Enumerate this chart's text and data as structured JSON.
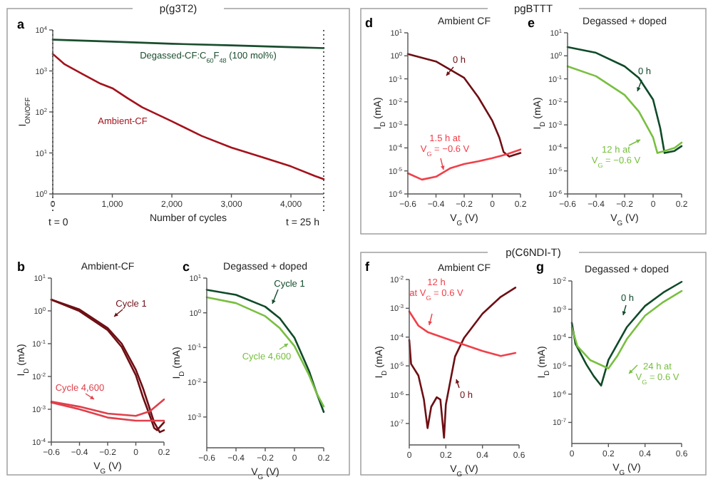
{
  "chart_data": [
    {
      "type": "line",
      "subtitle": "p(g3T2)",
      "annotations": [
        "a",
        "t = 0",
        "t = 25 h"
      ],
      "ylabel": "I$_{ON/OFF}$",
      "xlabel": "Number of cycles",
      "log": true,
      "xlim": [
        0,
        4550
      ],
      "xticks": [
        0,
        {
          "value": 1000,
          "label": "1,000"
        },
        {
          "value": 2000,
          "label": "2,000"
        },
        {
          "value": 3000,
          "label": "3,000"
        },
        {
          "value": 4000,
          "label": "4,000"
        }
      ],
      "ylim": [
        1,
        10000
      ],
      "yticks": [
        {
          "value": 1,
          "label": "10$^{0}$"
        },
        {
          "value": 10,
          "label": "10$^{1}$"
        },
        {
          "value": 100,
          "label": "10$^{2}$"
        },
        {
          "value": 1000,
          "label": "10$^{3}$"
        },
        {
          "value": 10000,
          "label": "10$^{4}$"
        }
      ],
      "ref_lines": [
        {
          "axis": "x",
          "value": 0,
          "line_style": "dotted"
        },
        {
          "axis": "x",
          "value": 4550,
          "line_style": "dotted"
        }
      ],
      "series": [
        {
          "name": "Degassed-CF:C$_{60}$F$_{48}$ (100 mol%)",
          "color": "#1a4d2e",
          "x": [
            0,
            1000,
            2000,
            3000,
            4000,
            4550
          ],
          "values": [
            5800,
            5200,
            4600,
            4200,
            3800,
            3600
          ]
        },
        {
          "name": "Ambient-CF",
          "color": "#a3121c",
          "x": [
            0,
            200,
            500,
            800,
            1000,
            1250,
            1500,
            2000,
            2500,
            3000,
            3500,
            4000,
            4400,
            4550
          ],
          "values": [
            2600,
            1450,
            840,
            490,
            380,
            220,
            130,
            59,
            26,
            13.5,
            8,
            4.7,
            2.75,
            2.3
          ]
        }
      ]
    },
    {
      "type": "line",
      "title": "Ambient-CF",
      "annotations": [
        "b"
      ],
      "xlabel": "V$_{G}$ (V)",
      "ylabel": "I$_{D}$ (mA)",
      "log": true,
      "xlim": [
        -0.6,
        0.2
      ],
      "xticks": [
        -0.6,
        -0.4,
        -0.2,
        0,
        0.2
      ],
      "ylim": [
        0.0001,
        10
      ],
      "yticks": [
        {
          "value": 0.0001,
          "label": "10$^{-4}$"
        },
        {
          "value": 0.001,
          "label": "10$^{-3}$"
        },
        {
          "value": 0.01,
          "label": "10$^{-2}$"
        },
        {
          "value": 0.1,
          "label": "10$^{-1}$"
        },
        {
          "value": 1,
          "label": "10$^{0}$"
        },
        {
          "value": 10,
          "label": "10$^{1}$"
        }
      ],
      "series": [
        {
          "name": "Cycle 1",
          "color": "#6e0f14",
          "x": [
            -0.6,
            -0.4,
            -0.2,
            -0.1,
            0,
            0.05,
            0.1,
            0.13,
            0.15,
            0.2
          ],
          "values": [
            2.2,
            0.98,
            0.26,
            0.079,
            0.011,
            0.0024,
            0.00063,
            0.00027,
            0.00023,
            0.0004
          ]
        },
        {
          "color": "#6e0f14",
          "x": [
            -0.6,
            -0.4,
            -0.2,
            -0.1,
            0,
            0.05,
            0.1,
            0.13,
            0.17,
            0.2
          ],
          "values": [
            2.2,
            1.1,
            0.3,
            0.1,
            0.016,
            0.0045,
            0.001,
            0.0004,
            0.0002,
            0.00023
          ]
        },
        {
          "name": "Cycle 4,600",
          "color": "#e0404a",
          "x": [
            -0.6,
            -0.4,
            -0.2,
            0,
            0.1,
            0.2
          ],
          "values": [
            0.0017,
            0.0012,
            0.00074,
            0.00063,
            0.00087,
            0.002
          ]
        },
        {
          "color": "#e0404a",
          "x": [
            -0.6,
            -0.4,
            -0.2,
            0,
            0.2
          ],
          "values": [
            0.0016,
            0.001,
            0.00056,
            0.00045,
            0.00045
          ]
        }
      ]
    },
    {
      "type": "line",
      "title": "Degassed + doped",
      "annotations": [
        "c"
      ],
      "xlabel": "V$_{G}$ (V)",
      "ylabel": "I$_{D}$ (mA)",
      "log": true,
      "xlim": [
        -0.6,
        0.2
      ],
      "xticks": [
        -0.6,
        -0.4,
        -0.2,
        0,
        0.2
      ],
      "ylim": [
        0.00013,
        10
      ],
      "yticks": [
        {
          "value": 0.001,
          "label": "10$^{-3}$"
        },
        {
          "value": 0.01,
          "label": "10$^{-2}$"
        },
        {
          "value": 0.1,
          "label": "10$^{-1}$"
        },
        {
          "value": 1,
          "label": "10$^{0}$"
        },
        {
          "value": 10,
          "label": "10$^{1}$"
        }
      ],
      "series": [
        {
          "name": "Cycle 1",
          "color": "#0f4a28",
          "x": [
            -0.6,
            -0.4,
            -0.2,
            -0.1,
            0,
            0.1,
            0.15,
            0.2
          ],
          "values": [
            4.6,
            3.3,
            1.5,
            0.69,
            0.19,
            0.021,
            0.0051,
            0.0014
          ]
        },
        {
          "name": "Cycle 4,600",
          "color": "#78bf3f",
          "x": [
            -0.6,
            -0.4,
            -0.2,
            -0.1,
            0,
            0.1,
            0.15,
            0.2
          ],
          "values": [
            2.8,
            1.9,
            0.8,
            0.36,
            0.11,
            0.016,
            0.005,
            0.002
          ]
        }
      ]
    },
    {
      "type": "line",
      "subtitle": "pgBTTT",
      "title": "Ambient CF",
      "annotations": [
        "d"
      ],
      "xlabel": "V$_{G}$ (V)",
      "ylabel": "I$_{D}$ (mA)",
      "log": true,
      "xlim": [
        -0.6,
        0.2
      ],
      "xticks": [
        -0.6,
        -0.4,
        -0.2,
        0,
        0.2
      ],
      "ylim": [
        1e-06,
        10
      ],
      "yticks": [
        {
          "value": 1e-06,
          "label": "10$^{-6}$"
        },
        {
          "value": 1e-05,
          "label": "10$^{-5}$"
        },
        {
          "value": 0.0001,
          "label": "10$^{-4}$"
        },
        {
          "value": 0.001,
          "label": "10$^{-3}$"
        },
        {
          "value": 0.01,
          "label": "10$^{-2}$"
        },
        {
          "value": 0.1,
          "label": "10$^{-1}$"
        },
        {
          "value": 1,
          "label": "10$^{0}$"
        },
        {
          "value": 10,
          "label": "10$^{1}$"
        }
      ],
      "series": [
        {
          "name": "0 h",
          "color": "#6e0f14",
          "x": [
            -0.6,
            -0.4,
            -0.2,
            -0.1,
            0,
            0.05,
            0.08,
            0.12,
            0.2
          ],
          "values": [
            1.2,
            0.57,
            0.11,
            0.016,
            0.0015,
            0.00028,
            6.6e-05,
            4.2e-05,
            6e-05
          ]
        },
        {
          "name": "1.5 h at\nV$_{G}$ = −0.6 V",
          "color": "#f0404a",
          "x": [
            -0.6,
            -0.5,
            -0.4,
            -0.3,
            -0.2,
            -0.1,
            0,
            0.1,
            0.2
          ],
          "values": [
            7.9e-06,
            4.2e-06,
            5.6e-06,
            1.3e-05,
            2e-05,
            2.6e-05,
            3.6e-05,
            5.2e-05,
            8.5e-05
          ]
        }
      ]
    },
    {
      "type": "line",
      "title": "Degassed + doped",
      "annotations": [
        "e"
      ],
      "xlabel": "V$_{G}$ (V)",
      "ylabel": "I$_{D}$ (mA)",
      "log": true,
      "xlim": [
        -0.6,
        0.2
      ],
      "xticks": [
        -0.6,
        -0.4,
        -0.2,
        0,
        0.2
      ],
      "ylim": [
        1e-06,
        10
      ],
      "yticks": [
        {
          "value": 1e-06,
          "label": "10$^{-6}$"
        },
        {
          "value": 1e-05,
          "label": "10$^{-5}$"
        },
        {
          "value": 0.0001,
          "label": "10$^{-4}$"
        },
        {
          "value": 0.001,
          "label": "10$^{-3}$"
        },
        {
          "value": 0.01,
          "label": "10$^{-2}$"
        },
        {
          "value": 0.1,
          "label": "10$^{-1}$"
        },
        {
          "value": 1,
          "label": "10$^{0}$"
        },
        {
          "value": 10,
          "label": "10$^{1}$"
        }
      ],
      "series": [
        {
          "name": "0 h",
          "color": "#0f4a28",
          "x": [
            -0.6,
            -0.4,
            -0.2,
            -0.1,
            0,
            0.05,
            0.08,
            0.15,
            0.2
          ],
          "values": [
            2.4,
            1.35,
            0.35,
            0.11,
            0.0125,
            0.00072,
            6e-05,
            7.4e-05,
            0.00012
          ]
        },
        {
          "name": "12 h at\nV$_{G}$ = −0.6 V",
          "color": "#78bf3f",
          "x": [
            -0.6,
            -0.4,
            -0.2,
            -0.1,
            0,
            0.03,
            0.08,
            0.15,
            0.2
          ],
          "values": [
            0.35,
            0.13,
            0.02,
            0.0038,
            0.00028,
            6e-05,
            7.4e-05,
            0.0001,
            0.00017
          ]
        }
      ]
    },
    {
      "type": "line",
      "subtitle": "p(C6NDI-T)",
      "title": "Ambient CF",
      "annotations": [
        "f"
      ],
      "xlabel": "V$_{G}$ (V)",
      "ylabel": "I$_{D}$ (mA)",
      "log": true,
      "xlim": [
        0,
        0.6
      ],
      "xticks": [
        0,
        0.2,
        0.4,
        0.6
      ],
      "ylim": [
        1.8e-08,
        0.01
      ],
      "yticks": [
        {
          "value": 1e-07,
          "label": "10$^{-7}$"
        },
        {
          "value": 1e-06,
          "label": "10$^{-6}$"
        },
        {
          "value": 1e-05,
          "label": "10$^{-5}$"
        },
        {
          "value": 0.0001,
          "label": "10$^{-4}$"
        },
        {
          "value": 0.001,
          "label": "10$^{-3}$"
        },
        {
          "value": 0.01,
          "label": "10$^{-2}$"
        }
      ],
      "series": [
        {
          "name": "0 h",
          "color": "#6e0f14",
          "x": [
            0,
            0.01,
            0.05,
            0.08,
            0.1,
            0.12,
            0.15,
            0.17,
            0.19,
            0.2,
            0.25,
            0.3,
            0.4,
            0.5,
            0.58
          ],
          "values": [
            7.9e-05,
            1.17e-05,
            4.6e-06,
            6.8e-07,
            6.9e-08,
            3.8e-07,
            8.1e-07,
            6.8e-07,
            3.2e-08,
            4.6e-07,
            2.1e-05,
            9.5e-05,
            0.00065,
            0.0025,
            0.0052
          ]
        },
        {
          "name": "12 h\nat V$_{G}$ = 0.6 V",
          "color": "#f0404a",
          "x": [
            0,
            0.05,
            0.1,
            0.2,
            0.3,
            0.4,
            0.5,
            0.58
          ],
          "values": [
            0.00078,
            0.00025,
            0.00015,
            8.9e-05,
            5.4e-05,
            3.3e-05,
            2.2e-05,
            2.8e-05
          ]
        }
      ]
    },
    {
      "type": "line",
      "title": "Degassed + doped",
      "annotations": [
        "g"
      ],
      "xlabel": "V$_{G}$ (V)",
      "ylabel": "I$_{D}$ (mA)",
      "log": true,
      "xlim": [
        0,
        0.6
      ],
      "xticks": [
        0,
        0.2,
        0.4,
        0.6
      ],
      "ylim": [
        1.8e-08,
        0.01
      ],
      "yticks": [
        {
          "value": 1e-07,
          "label": "10$^{-7}$"
        },
        {
          "value": 1e-06,
          "label": "10$^{-6}$"
        },
        {
          "value": 1e-05,
          "label": "10$^{-5}$"
        },
        {
          "value": 0.0001,
          "label": "10$^{-4}$"
        },
        {
          "value": 0.001,
          "label": "10$^{-3}$"
        },
        {
          "value": 0.01,
          "label": "10$^{-2}$"
        }
      ],
      "series": [
        {
          "name": "0 h",
          "color": "#0f4a28",
          "x": [
            0,
            0.02,
            0.08,
            0.12,
            0.16,
            0.2,
            0.3,
            0.4,
            0.5,
            0.6
          ],
          "values": [
            0.00033,
            6e-05,
            1.1e-05,
            4.3e-06,
            2e-06,
            1.6e-05,
            0.00023,
            0.0013,
            0.0039,
            0.0093
          ]
        },
        {
          "name": "24 h at\nV$_{G}$ = 0.6 V",
          "color": "#78bf3f",
          "x": [
            0,
            0.03,
            0.1,
            0.2,
            0.25,
            0.3,
            0.4,
            0.5,
            0.6
          ],
          "values": [
            0.00023,
            5e-05,
            1.6e-05,
            8.1e-06,
            2.3e-05,
            8.7e-05,
            0.00059,
            0.0018,
            0.0044
          ]
        }
      ]
    }
  ]
}
